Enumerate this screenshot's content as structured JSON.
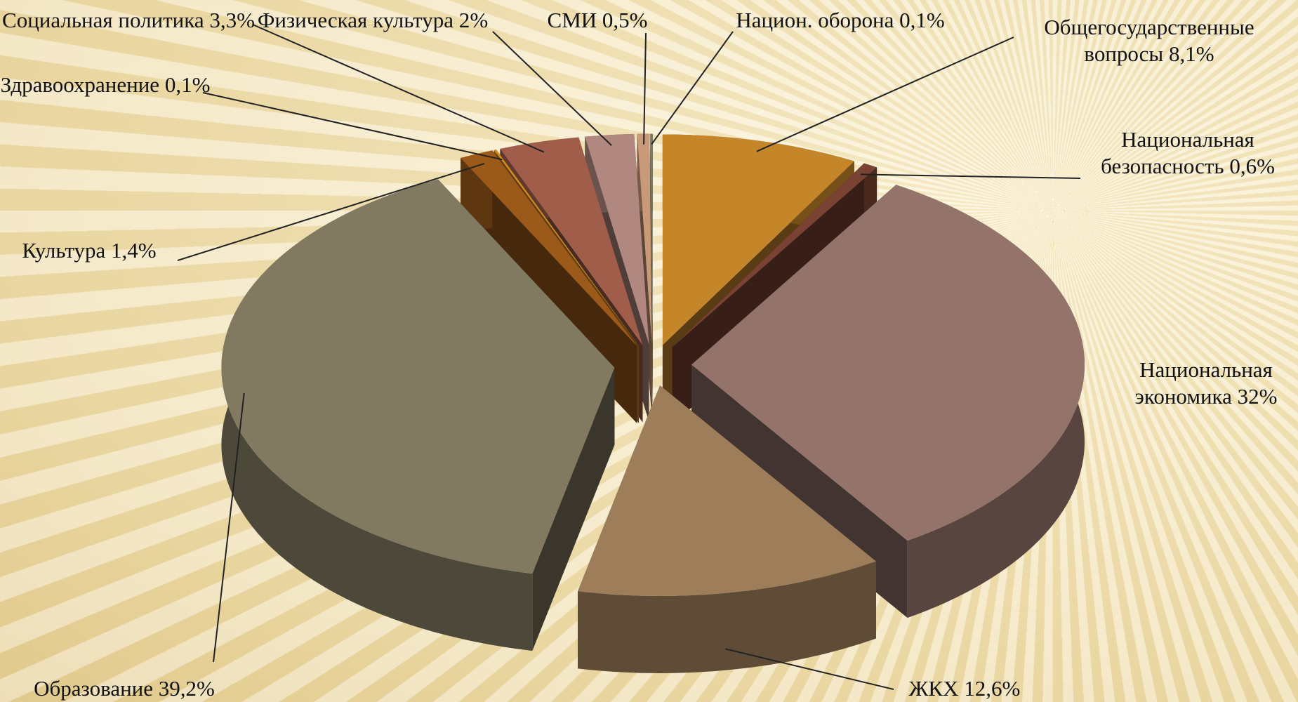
{
  "chart_data": {
    "type": "pie3d",
    "categories": [
      "Общегосударственные вопросы",
      "Национальная безопасность",
      "Национальная экономика",
      "ЖКХ",
      "Образование",
      "Культура",
      "Здравоохранение",
      "Социальная политика",
      "Физическая культура",
      "СМИ",
      "Национ. оборона"
    ],
    "values": [
      8.1,
      0.6,
      32,
      12.6,
      39.2,
      1.4,
      0.1,
      3.3,
      2,
      0.5,
      0.1
    ],
    "value_labels": [
      "8,1%",
      "0,6%",
      "32%",
      "12,6%",
      "39,2%",
      "1,4%",
      "0,1%",
      "3,3%",
      "2%",
      "0,5%",
      "0,1%"
    ],
    "colors": [
      "#c5862a",
      "#7a4232",
      "#93736a",
      "#9e7e5a",
      "#817960",
      "#9c5a1a",
      "#d08a20",
      "#a05e4a",
      "#b08880",
      "#c89a78",
      "#7a7a6a"
    ]
  }
}
